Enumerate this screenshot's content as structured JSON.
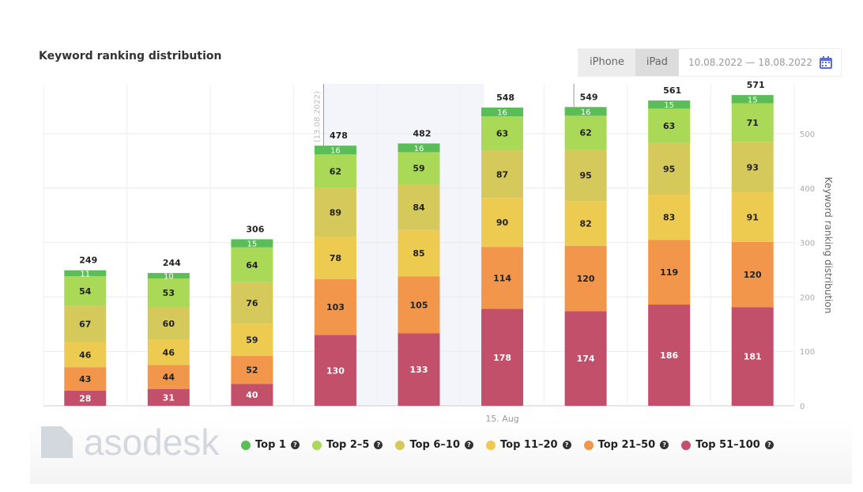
{
  "header": {
    "title": "Keyword ranking distribution",
    "devices": [
      "iPhone",
      "iPad"
    ],
    "date_range": "10.08.2022 — 18.08.2022"
  },
  "logo_text": "asodesk",
  "chart_data": {
    "type": "bar",
    "stacked": true,
    "ylabel": "Keyword ranking distribution",
    "y_ticks": [
      0,
      100,
      200,
      300,
      400,
      500
    ],
    "ylim": [
      0,
      600
    ],
    "x_tick_labels": [
      {
        "index": 5,
        "label": "15. Aug"
      }
    ],
    "annotations": [
      {
        "index": 3,
        "label": "(13.08.2022)"
      },
      {
        "index": 6,
        "label": ""
      }
    ],
    "shaded_range": [
      3,
      5
    ],
    "grid": true,
    "legend_position": "bottom",
    "series": [
      {
        "name": "Top 51-100",
        "color": "#c2506a",
        "values": [
          28,
          31,
          40,
          130,
          133,
          178,
          174,
          186,
          181
        ]
      },
      {
        "name": "Top 21-50",
        "color": "#f2964b",
        "values": [
          43,
          44,
          52,
          103,
          105,
          114,
          120,
          119,
          120
        ]
      },
      {
        "name": "Top 11-20",
        "color": "#eccb50",
        "values": [
          46,
          46,
          59,
          78,
          85,
          90,
          82,
          83,
          91
        ]
      },
      {
        "name": "Top 6-10",
        "color": "#d6c95c",
        "values": [
          67,
          60,
          76,
          89,
          84,
          87,
          95,
          95,
          93
        ]
      },
      {
        "name": "Top 2-5",
        "color": "#a9d956",
        "values": [
          54,
          53,
          64,
          62,
          59,
          63,
          62,
          63,
          71
        ]
      },
      {
        "name": "Top 1",
        "color": "#5bbd57",
        "values": [
          11,
          10,
          15,
          16,
          16,
          16,
          16,
          15,
          15
        ]
      }
    ],
    "totals": [
      249,
      244,
      306,
      478,
      482,
      548,
      549,
      561,
      571
    ]
  },
  "legend_order": [
    5,
    4,
    3,
    2,
    1,
    0
  ]
}
